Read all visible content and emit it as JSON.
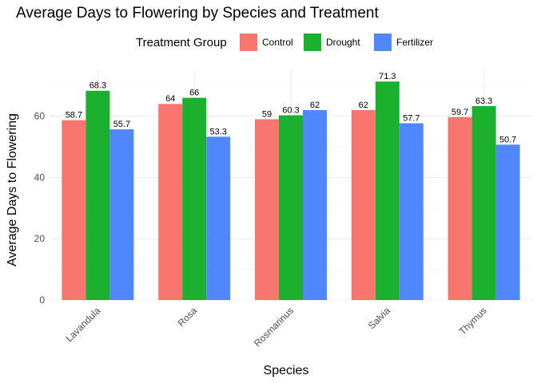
{
  "chart_data": {
    "type": "bar",
    "title": "Average Days to Flowering by Species and Treatment",
    "xlabel": "Species",
    "ylabel": "Average Days to Flowering",
    "legend_title": "Treatment Group",
    "legend_position": "top",
    "categories": [
      "Lavandula",
      "Rosa",
      "Rosmarinus",
      "Salvia",
      "Thymus"
    ],
    "series": [
      {
        "name": "Control",
        "color": "#F8766D",
        "values": [
          58.7,
          64,
          59,
          62,
          59.7
        ]
      },
      {
        "name": "Drought",
        "color": "#1CB02F",
        "values": [
          68.3,
          66,
          60.3,
          71.3,
          63.3
        ]
      },
      {
        "name": "Fertilizer",
        "color": "#5087FF",
        "values": [
          55.7,
          53.3,
          62,
          57.7,
          50.7
        ]
      }
    ],
    "ylim": [
      0,
      75
    ],
    "yticks": [
      0,
      20,
      40,
      60
    ],
    "grid": true
  }
}
